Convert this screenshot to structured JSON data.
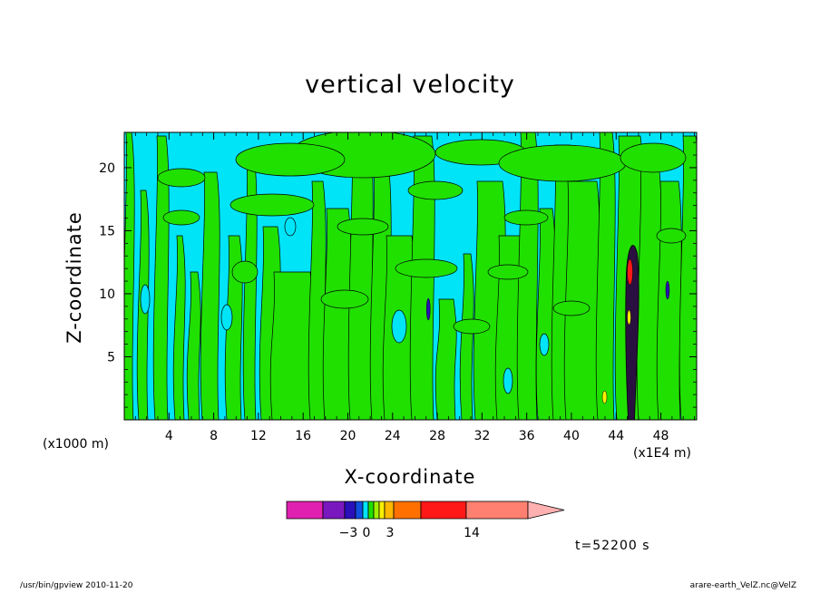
{
  "chart_data": {
    "type": "heatmap",
    "title": "vertical velocity",
    "xlabel": "X-coordinate",
    "ylabel": "Z-coordinate",
    "x_unit": "(x1E4 m)",
    "y_unit": "(x1000 m)",
    "x_ticks": [
      4,
      8,
      12,
      16,
      20,
      24,
      28,
      32,
      36,
      40,
      44,
      48
    ],
    "y_ticks": [
      5,
      10,
      15,
      20
    ],
    "xlim": [
      0,
      51.2
    ],
    "ylim": [
      0,
      22.8
    ],
    "legend_labels": [
      {
        "value": -3,
        "text": "−3"
      },
      {
        "value": 0,
        "text": "0"
      },
      {
        "value": 3,
        "text": "3"
      },
      {
        "value": 14,
        "text": "14"
      }
    ],
    "colorbar": [
      {
        "color": "#e020b0"
      },
      {
        "color": "#7a18c0"
      },
      {
        "color": "#2a10b8"
      },
      {
        "color": "#1050e0"
      },
      {
        "color": "#00e4f8"
      },
      {
        "color": "#20e000"
      },
      {
        "color": "#a0f000"
      },
      {
        "color": "#f8f000"
      },
      {
        "color": "#ffb800"
      },
      {
        "color": "#ff7000"
      },
      {
        "color": "#ff1818"
      },
      {
        "color": "#ff8070"
      },
      {
        "color": "#ffb0b0"
      }
    ],
    "fill_colors": {
      "negative": "#00e4f8",
      "positive": "#20e000",
      "strong": "#2a1040"
    }
  },
  "annotations": {
    "timestamp": "t=52200 s",
    "footer_left": "/usr/bin/gpview   2010-11-20",
    "footer_right": "arare-earth_VelZ.nc@VelZ"
  }
}
